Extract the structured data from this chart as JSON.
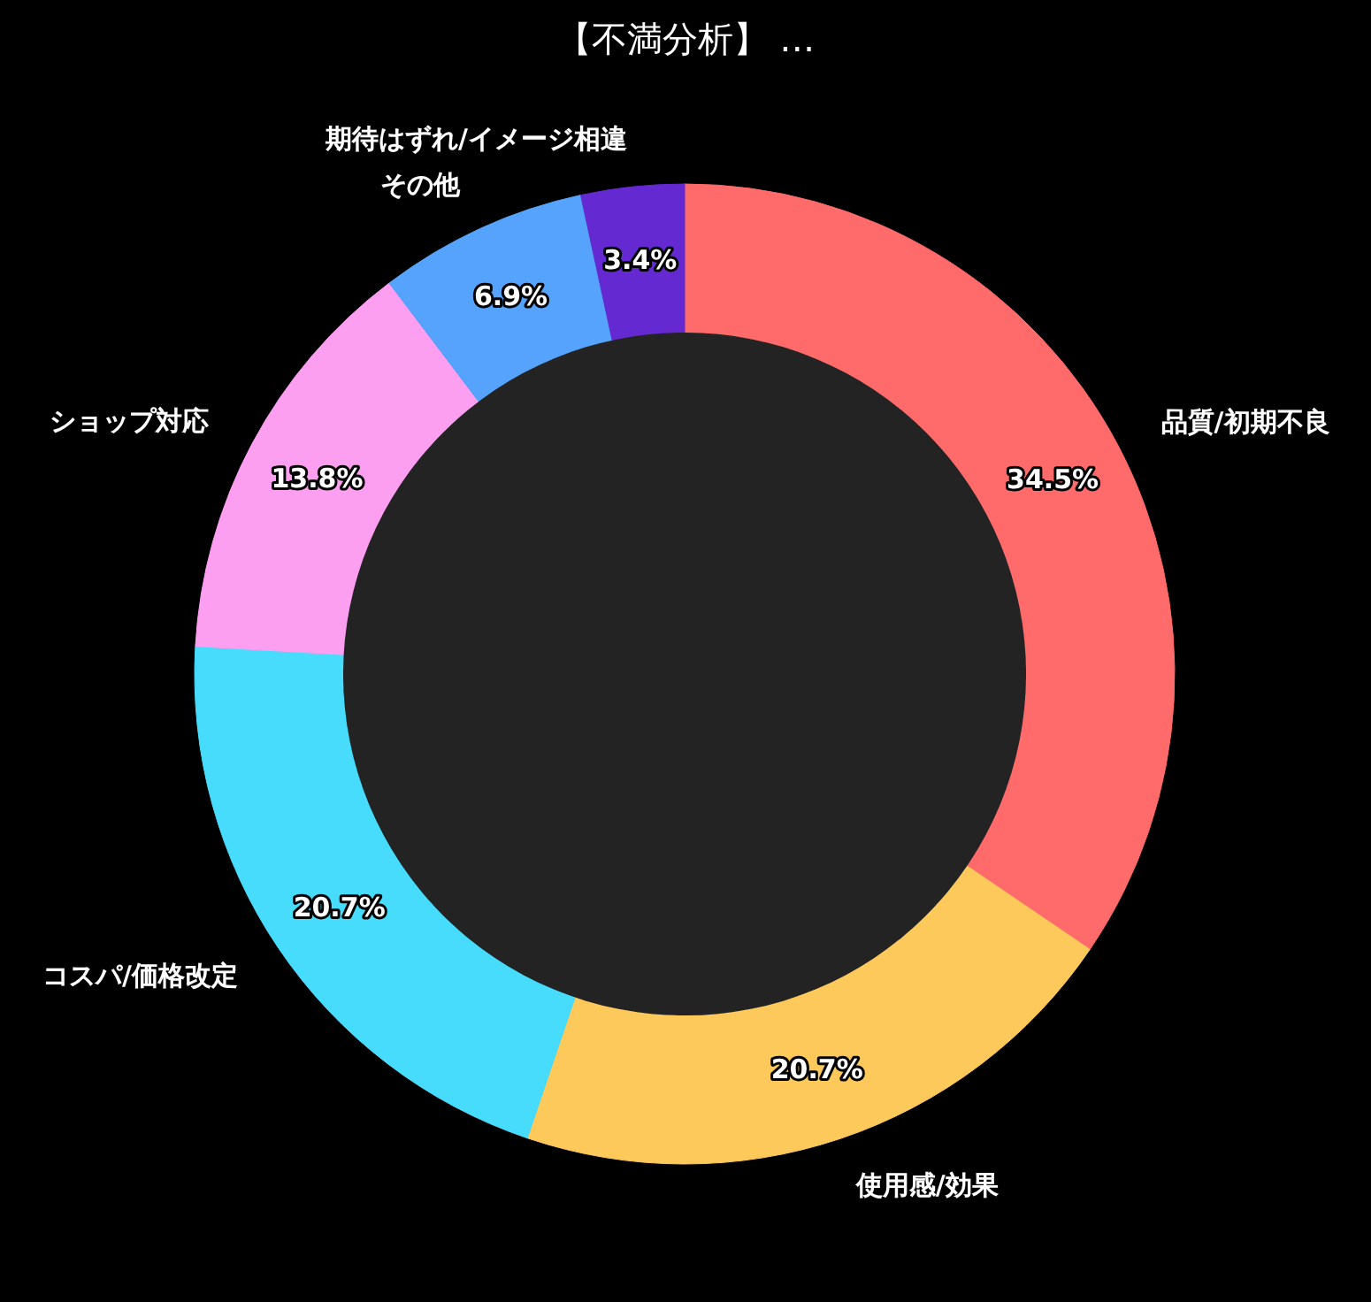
{
  "chart_data": {
    "type": "donut",
    "title": "【不満分析】 …",
    "categories": [
      "品質/初期不良",
      "使用感/効果",
      "コスパ/価格改定",
      "ショップ対応",
      "その他",
      "期待はずれ/イメージ相違"
    ],
    "values": [
      34.5,
      20.7,
      20.7,
      13.8,
      6.9,
      3.4
    ],
    "colors": [
      "#ff6b6b",
      "#fdc95b",
      "#48dcfc",
      "#fd9ff1",
      "#55a3fc",
      "#6429d0"
    ],
    "value_labels": [
      "34.5%",
      "20.7%",
      "20.7%",
      "13.8%",
      "6.9%",
      "3.4%"
    ]
  }
}
